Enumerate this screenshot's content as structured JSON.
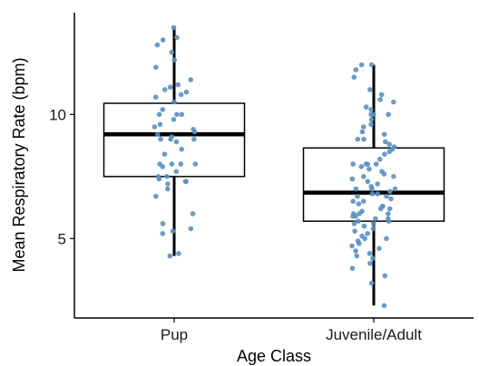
{
  "chart_data": {
    "type": "box",
    "xlabel": "Age Class",
    "ylabel": "Mean Respiratory Rate (bpm)",
    "categories": [
      "Pup",
      "Juvenile/Adult"
    ],
    "ylim": [
      1.8,
      14.1
    ],
    "yticks": [
      5,
      10
    ],
    "grid": false,
    "boxes": [
      {
        "category": "Pup",
        "whisker_low": 4.3,
        "q1": 7.5,
        "median": 9.2,
        "q3": 10.45,
        "whisker_high": 13.5
      },
      {
        "category": "Juvenile/Adult",
        "whisker_low": 2.3,
        "q1": 5.7,
        "median": 6.85,
        "q3": 8.65,
        "whisker_high": 12.0
      }
    ],
    "points": [
      {
        "category": "Pup",
        "values": [
          13.5,
          13.1,
          12.8,
          13.0,
          12.5,
          12.2,
          11.9,
          11.4,
          11.2,
          11.1,
          11.0,
          10.9,
          10.8,
          10.7,
          10.5,
          10.2,
          10.0,
          10.0,
          10.0,
          9.8,
          9.6,
          9.5,
          9.4,
          9.3,
          9.2,
          9.1,
          9.0,
          9.0,
          9.0,
          8.9,
          8.6,
          8.4,
          8.0,
          8.0,
          8.0,
          7.9,
          7.7,
          7.5,
          7.4,
          7.3,
          7.2,
          7.0,
          6.7,
          6.0,
          5.6,
          5.4,
          5.3,
          5.2,
          4.4,
          4.3,
          7.3,
          8.0,
          7.5
        ],
        "color": "#5B8FC0"
      },
      {
        "category": "Juvenile/Adult",
        "values": [
          12.0,
          12.0,
          11.8,
          11.5,
          11.0,
          10.8,
          10.6,
          10.5,
          10.3,
          10.2,
          10.0,
          10.0,
          10.0,
          9.8,
          9.6,
          9.5,
          9.3,
          9.2,
          9.0,
          9.0,
          8.9,
          8.8,
          8.7,
          8.6,
          8.5,
          8.4,
          8.2,
          8.0,
          8.0,
          8.0,
          8.0,
          7.9,
          7.8,
          7.7,
          7.6,
          7.5,
          7.5,
          7.4,
          7.3,
          7.2,
          7.1,
          7.0,
          7.0,
          7.0,
          6.9,
          6.8,
          6.8,
          6.7,
          6.7,
          6.6,
          6.5,
          6.5,
          6.4,
          6.3,
          6.3,
          6.2,
          6.2,
          6.1,
          6.0,
          6.0,
          6.0,
          5.9,
          5.9,
          5.8,
          5.8,
          5.7,
          5.7,
          5.6,
          5.6,
          5.5,
          5.4,
          5.3,
          5.2,
          5.1,
          5.0,
          5.0,
          4.9,
          4.8,
          4.7,
          4.6,
          4.5,
          4.4,
          4.3,
          4.2,
          4.0,
          3.8,
          3.5,
          3.2,
          2.3
        ],
        "color": "#5B8FC0"
      }
    ]
  }
}
